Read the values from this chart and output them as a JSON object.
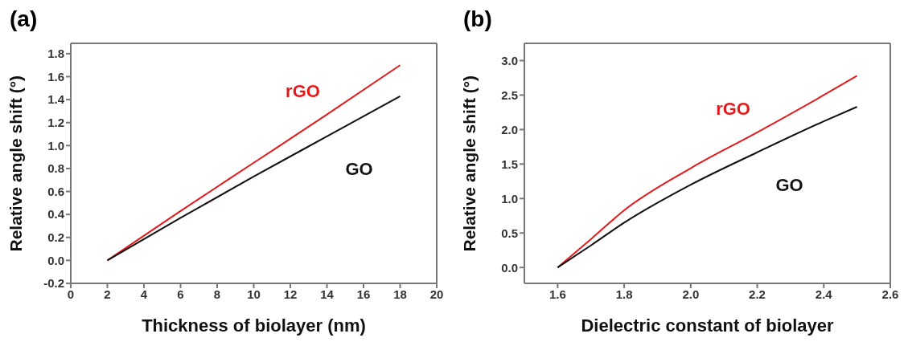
{
  "chart_data": [
    {
      "type": "line",
      "title": "(a)",
      "xlabel": "Thickness of biolayer (nm)",
      "ylabel": "Relative angle shift (°)",
      "xlim": [
        0,
        20
      ],
      "xticks": [
        0,
        2,
        4,
        6,
        8,
        10,
        12,
        14,
        16,
        18,
        20
      ],
      "ylim": [
        -0.2,
        1.89
      ],
      "yticks": [
        {
          "value": -0.2,
          "label": "-0.2"
        },
        {
          "value": 0,
          "label": "0.0"
        },
        {
          "value": 0.2,
          "label": "0.2"
        },
        {
          "value": 0.4,
          "label": "0.4"
        },
        {
          "value": 0.6,
          "label": "0.6"
        },
        {
          "value": 0.8,
          "label": "0.8"
        },
        {
          "value": 1,
          "label": "1.0"
        },
        {
          "value": 1.2,
          "label": "1.2"
        },
        {
          "value": 1.4,
          "label": "1.4"
        },
        {
          "value": 1.6,
          "label": "1.6"
        },
        {
          "value": 1.8,
          "label": "1.8"
        }
      ],
      "grid": false,
      "legend": false,
      "x": [
        2,
        6,
        10,
        14,
        18
      ],
      "series": [
        {
          "name": "rGO",
          "color": "#e31a1c",
          "values": [
            0,
            0.43,
            0.85,
            1.27,
            1.7
          ]
        },
        {
          "name": "GO",
          "color": "#111111",
          "values": [
            0,
            0.37,
            0.73,
            1.08,
            1.43
          ]
        }
      ]
    },
    {
      "type": "line",
      "title": "(b)",
      "xlabel": "Dielectric constant of biolayer",
      "ylabel": "Relative angle shift (°)",
      "xlim": [
        1.5,
        2.6
      ],
      "xticks": [
        1.6,
        1.8,
        {
          "value": 2,
          "label": "2.0"
        },
        2.2,
        2.4,
        2.6
      ],
      "ylim": [
        -0.23,
        3.25
      ],
      "yticks": [
        {
          "value": 0,
          "label": "0.0"
        },
        0.5,
        {
          "value": 1,
          "label": "1.0"
        },
        1.5,
        {
          "value": 2,
          "label": "2.0"
        },
        2.5,
        {
          "value": 3,
          "label": "3.0"
        }
      ],
      "grid": false,
      "legend": false,
      "x": [
        1.6,
        1.7,
        1.8,
        2,
        2.2,
        2.4,
        2.5
      ],
      "series": [
        {
          "name": "rGO",
          "color": "#e31a1c",
          "values": [
            0,
            0.41,
            0.83,
            1.44,
            1.96,
            2.5,
            2.78
          ]
        },
        {
          "name": "GO",
          "color": "#111111",
          "values": [
            0,
            0.32,
            0.65,
            1.2,
            1.67,
            2.12,
            2.33
          ]
        }
      ]
    }
  ]
}
